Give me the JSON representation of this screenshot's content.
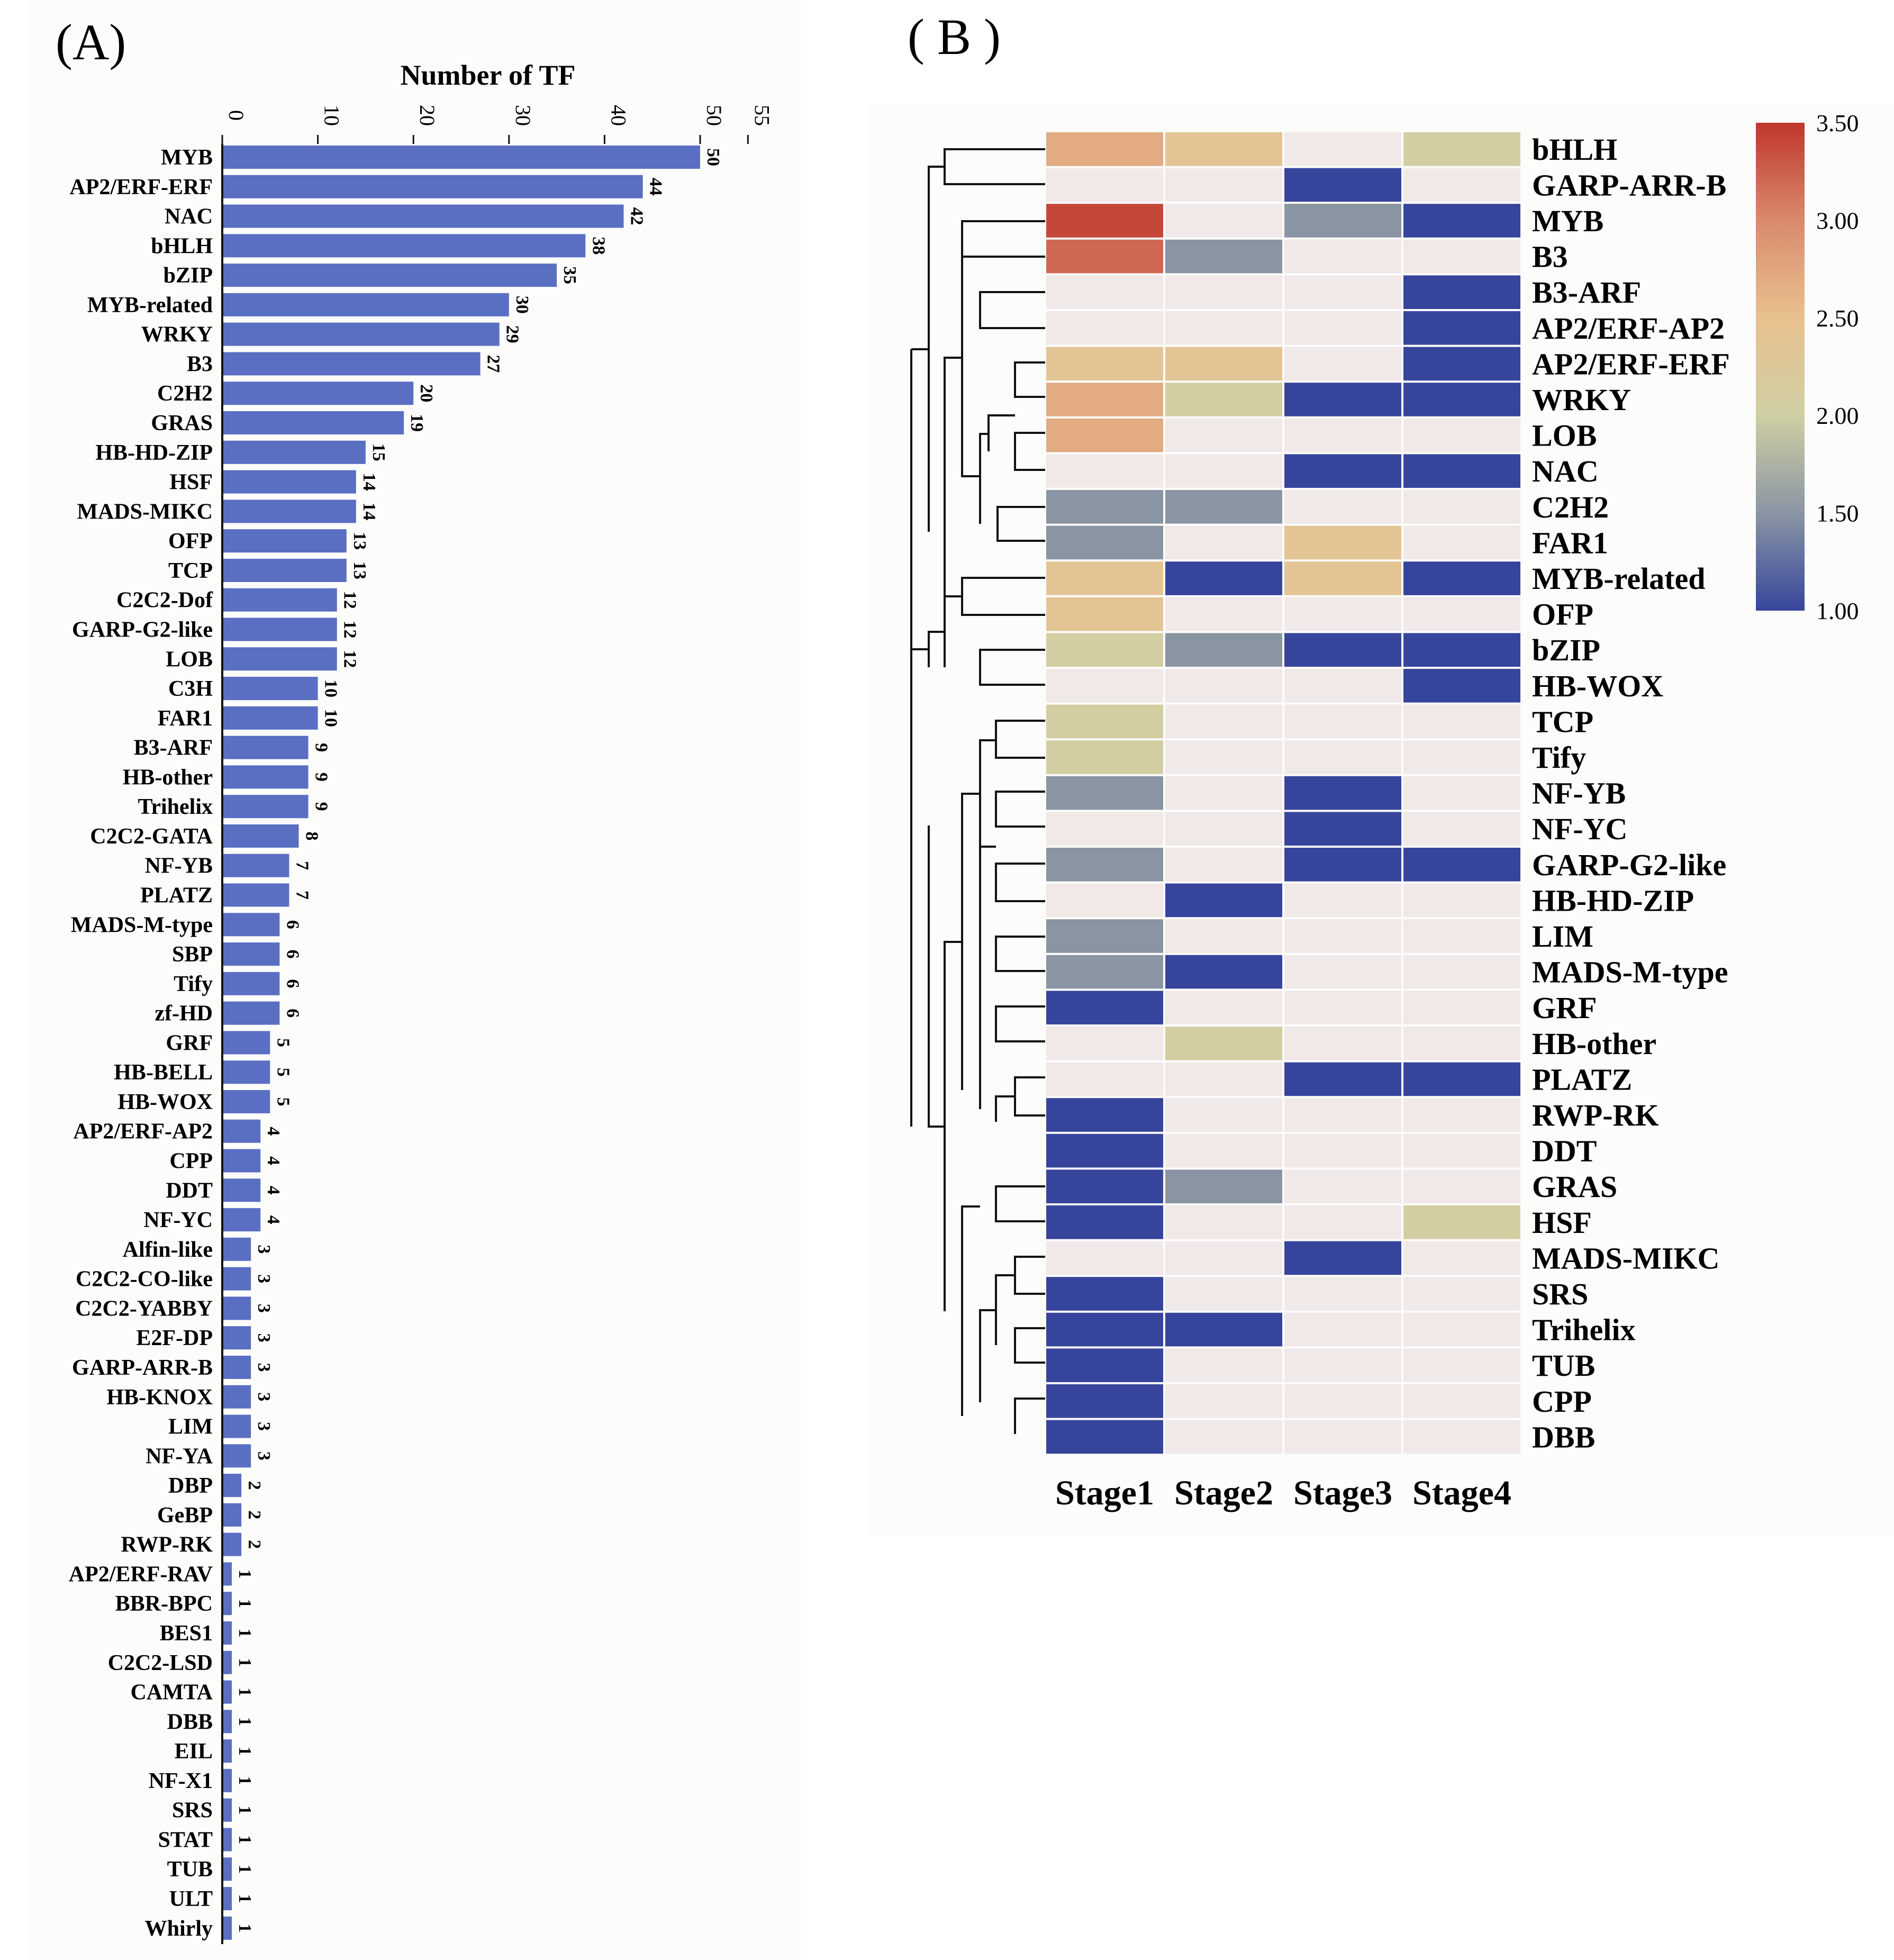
{
  "panel_labels": {
    "a": "(A)",
    "b": "( B )"
  },
  "colors": {
    "bar": "#5a6fc2",
    "background_panel": "#fcfcfb",
    "heat_stops": [
      "#36459b",
      "#8a95a3",
      "#cfcfa3",
      "#e8c190",
      "#d98a6c",
      "#c0362d"
    ],
    "heat_empty": "#f0e9e8"
  },
  "chart_data": [
    {
      "type": "bar",
      "orientation": "horizontal",
      "title": "Number of TF",
      "xlim": [
        0,
        55
      ],
      "ticks": [
        "0",
        "10",
        "20",
        "30",
        "40",
        "50",
        "55"
      ],
      "categories": [
        "MYB",
        "AP2/ERF-ERF",
        "NAC",
        "bHLH",
        "bZIP",
        "MYB-related",
        "WRKY",
        "B3",
        "C2H2",
        "GRAS",
        "HB-HD-ZIP",
        "HSF",
        "MADS-MIKC",
        "OFP",
        "TCP",
        "C2C2-Dof",
        "GARP-G2-like",
        "LOB",
        "C3H",
        "FAR1",
        "B3-ARF",
        "HB-other",
        "Trihelix",
        "C2C2-GATA",
        "NF-YB",
        "PLATZ",
        "MADS-M-type",
        "SBP",
        "Tify",
        "zf-HD",
        "GRF",
        "HB-BELL",
        "HB-WOX",
        "AP2/ERF-AP2",
        "CPP",
        "DDT",
        "NF-YC",
        "Alfin-like",
        "C2C2-CO-like",
        "C2C2-YABBY",
        "E2F-DP",
        "GARP-ARR-B",
        "HB-KNOX",
        "LIM",
        "NF-YA",
        "DBP",
        "GeBP",
        "RWP-RK",
        "AP2/ERF-RAV",
        "BBR-BPC",
        "BES1",
        "C2C2-LSD",
        "CAMTA",
        "DBB",
        "EIL",
        "NF-X1",
        "SRS",
        "STAT",
        "TUB",
        "ULT",
        "Whirly"
      ],
      "values": [
        50,
        44,
        42,
        38,
        35,
        30,
        29,
        27,
        20,
        19,
        15,
        14,
        14,
        13,
        13,
        12,
        12,
        12,
        10,
        10,
        9,
        9,
        9,
        8,
        7,
        7,
        6,
        6,
        6,
        6,
        5,
        5,
        5,
        4,
        4,
        4,
        4,
        3,
        3,
        3,
        3,
        3,
        3,
        3,
        3,
        2,
        2,
        2,
        1,
        1,
        1,
        1,
        1,
        1,
        1,
        1,
        1,
        1,
        1,
        1,
        1
      ],
      "value_labels": [
        "50",
        "44",
        "42",
        "38",
        "35",
        "30",
        "29",
        "27",
        "20",
        "19",
        "15",
        "14",
        "14",
        "13",
        "13",
        "12",
        "12",
        "12",
        "10",
        "10",
        "9",
        "9",
        "9",
        "8",
        "7",
        "7",
        "6",
        "6",
        "6",
        "6",
        "5",
        "5",
        "5",
        "4",
        "4",
        "4",
        "4",
        "3",
        "3",
        "3",
        "3",
        "3",
        "3",
        "3",
        "3",
        "2",
        "2",
        "2",
        "1",
        "1",
        "1",
        "1",
        "1",
        "1",
        "1",
        "1",
        "1",
        "1",
        "1",
        "1",
        "1"
      ]
    },
    {
      "type": "heatmap",
      "rows": [
        "bHLH",
        "GARP-ARR-B",
        "MYB",
        "B3",
        "B3-ARF",
        "AP2/ERF-AP2",
        "AP2/ERF-ERF",
        "WRKY",
        "LOB",
        "NAC",
        "C2H2",
        "FAR1",
        "MYB-related",
        "OFP",
        "bZIP",
        "HB-WOX",
        "TCP",
        "Tify",
        "NF-YB",
        "NF-YC",
        "GARP-G2-like",
        "HB-HD-ZIP",
        "LIM",
        "MADS-M-type",
        "GRF",
        "HB-other",
        "PLATZ",
        "RWP-RK",
        "DDT",
        "GRAS",
        "HSF",
        "MADS-MIKC",
        "SRS",
        "Trihelix",
        "TUB",
        "CPP",
        "DBB"
      ],
      "columns": [
        "Stage1",
        "Stage2",
        "Stage3",
        "Stage4"
      ],
      "values": [
        [
          2.7,
          2.4,
          null,
          2.05
        ],
        [
          null,
          null,
          1.0,
          null
        ],
        [
          3.4,
          null,
          1.5,
          1.0
        ],
        [
          3.2,
          1.5,
          null,
          null
        ],
        [
          null,
          null,
          null,
          1.0
        ],
        [
          null,
          null,
          null,
          1.0
        ],
        [
          2.4,
          2.4,
          null,
          1.0
        ],
        [
          2.7,
          2.05,
          1.0,
          1.0
        ],
        [
          2.7,
          null,
          null,
          null
        ],
        [
          null,
          null,
          1.0,
          1.0
        ],
        [
          1.5,
          1.5,
          null,
          null
        ],
        [
          1.5,
          null,
          2.4,
          null
        ],
        [
          2.4,
          1.0,
          2.4,
          1.0
        ],
        [
          2.4,
          null,
          null,
          null
        ],
        [
          2.05,
          1.5,
          1.0,
          1.0
        ],
        [
          null,
          null,
          null,
          1.0
        ],
        [
          2.05,
          null,
          null,
          null
        ],
        [
          2.05,
          null,
          null,
          null
        ],
        [
          1.5,
          null,
          1.0,
          null
        ],
        [
          null,
          null,
          1.0,
          null
        ],
        [
          1.5,
          null,
          1.0,
          1.0
        ],
        [
          null,
          1.0,
          null,
          null
        ],
        [
          1.5,
          null,
          null,
          null
        ],
        [
          1.5,
          1.0,
          null,
          null
        ],
        [
          1.0,
          null,
          null,
          null
        ],
        [
          null,
          2.05,
          null,
          null
        ],
        [
          null,
          null,
          1.0,
          1.0
        ],
        [
          1.0,
          null,
          null,
          null
        ],
        [
          1.0,
          null,
          null,
          null
        ],
        [
          1.0,
          1.5,
          null,
          null
        ],
        [
          1.0,
          null,
          null,
          2.05
        ],
        [
          null,
          null,
          1.0,
          null
        ],
        [
          1.0,
          null,
          null,
          null
        ],
        [
          1.0,
          1.0,
          null,
          null
        ],
        [
          1.0,
          null,
          null,
          null
        ],
        [
          1.0,
          null,
          null,
          null
        ],
        [
          1.0,
          null,
          null,
          null
        ]
      ],
      "colorbar": {
        "range": [
          1.0,
          3.5
        ],
        "tick_labels": [
          "3.50",
          "3.00",
          "2.50",
          "2.00",
          "1.50",
          "1.00"
        ]
      }
    }
  ]
}
